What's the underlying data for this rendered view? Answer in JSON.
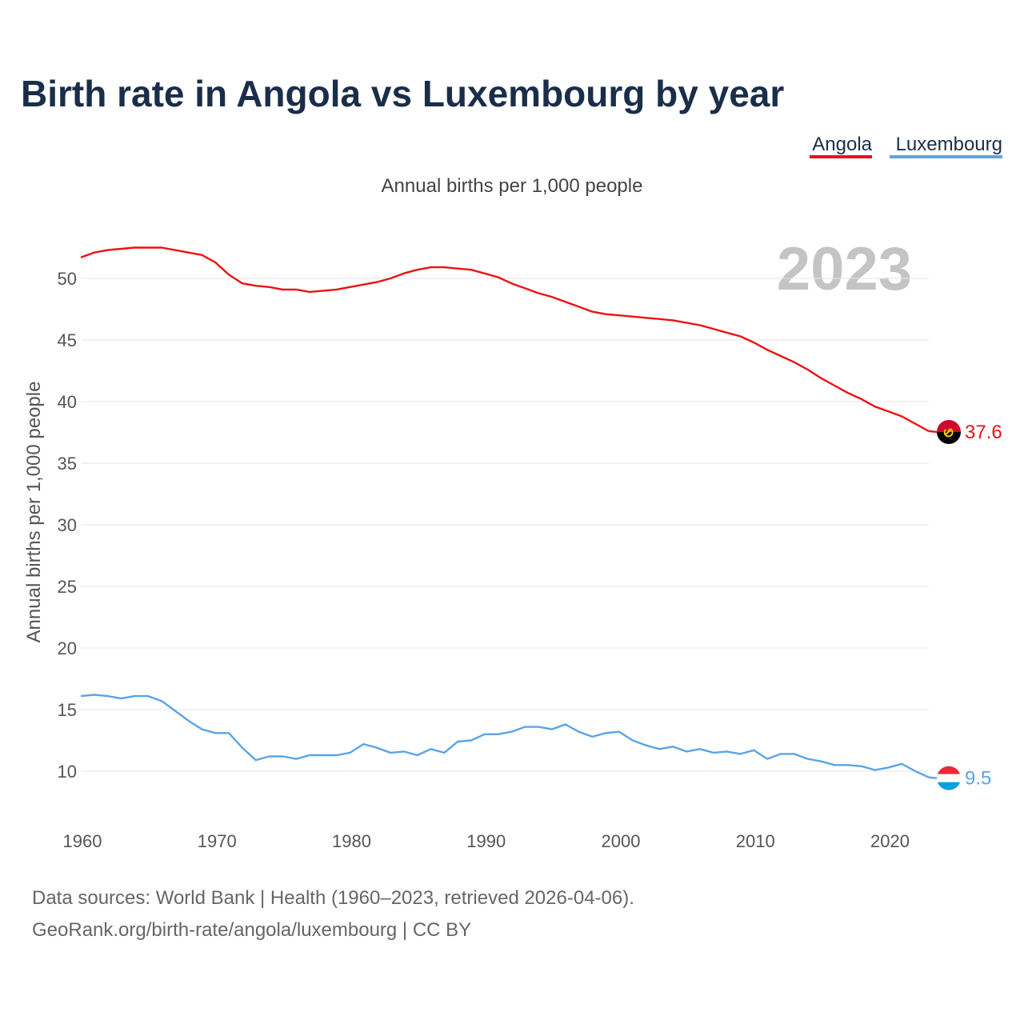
{
  "chart_data": {
    "type": "line",
    "title": "Birth rate in Angola vs Luxembourg by year",
    "subtitle": "Annual births per 1,000 people",
    "ylabel": "Annual births per 1,000 people",
    "xlabel": "",
    "xlim": [
      1960,
      2023
    ],
    "ylim": [
      6.5,
      54
    ],
    "year_label": "2023",
    "x_ticks": [
      1960,
      1970,
      1980,
      1990,
      2000,
      2010,
      2020
    ],
    "y_ticks": [
      10,
      15,
      20,
      25,
      30,
      35,
      40,
      45,
      50
    ],
    "legend": [
      "Angola",
      "Luxembourg"
    ],
    "legend_position": "top-right",
    "x": [
      1960,
      1961,
      1962,
      1963,
      1964,
      1965,
      1966,
      1967,
      1968,
      1969,
      1970,
      1971,
      1972,
      1973,
      1974,
      1975,
      1976,
      1977,
      1978,
      1979,
      1980,
      1981,
      1982,
      1983,
      1984,
      1985,
      1986,
      1987,
      1988,
      1989,
      1990,
      1991,
      1992,
      1993,
      1994,
      1995,
      1996,
      1997,
      1998,
      1999,
      2000,
      2001,
      2002,
      2003,
      2004,
      2005,
      2006,
      2007,
      2008,
      2009,
      2010,
      2011,
      2012,
      2013,
      2014,
      2015,
      2016,
      2017,
      2018,
      2019,
      2020,
      2021,
      2022,
      2023
    ],
    "series": [
      {
        "name": "Angola",
        "color": "#ee1111",
        "end_label": "37.6",
        "flag_icon": "angola-flag-icon",
        "values": [
          51.7,
          52.1,
          52.3,
          52.4,
          52.5,
          52.5,
          52.5,
          52.3,
          52.1,
          51.9,
          51.3,
          50.3,
          49.6,
          49.4,
          49.3,
          49.1,
          49.1,
          48.9,
          49.0,
          49.1,
          49.3,
          49.5,
          49.7,
          50.0,
          50.4,
          50.7,
          50.9,
          50.9,
          50.8,
          50.7,
          50.4,
          50.1,
          49.6,
          49.2,
          48.8,
          48.5,
          48.1,
          47.7,
          47.3,
          47.1,
          47.0,
          46.9,
          46.8,
          46.7,
          46.6,
          46.4,
          46.2,
          45.9,
          45.6,
          45.3,
          44.8,
          44.2,
          43.7,
          43.2,
          42.6,
          41.9,
          41.3,
          40.7,
          40.2,
          39.6,
          39.2,
          38.8,
          38.2,
          37.6
        ]
      },
      {
        "name": "Luxembourg",
        "color": "#5aa4e8",
        "end_label": "9.5",
        "flag_icon": "luxembourg-flag-icon",
        "values": [
          16.1,
          16.2,
          16.1,
          15.9,
          16.1,
          16.1,
          15.7,
          14.9,
          14.1,
          13.4,
          13.1,
          13.1,
          11.9,
          10.9,
          11.2,
          11.2,
          11.0,
          11.3,
          11.3,
          11.3,
          11.5,
          12.2,
          11.9,
          11.5,
          11.6,
          11.3,
          11.8,
          11.5,
          12.4,
          12.5,
          13.0,
          13.0,
          13.2,
          13.6,
          13.6,
          13.4,
          13.8,
          13.2,
          12.8,
          13.1,
          13.2,
          12.5,
          12.1,
          11.8,
          12.0,
          11.6,
          11.8,
          11.5,
          11.6,
          11.4,
          11.7,
          11.0,
          11.4,
          11.4,
          11.0,
          10.8,
          10.5,
          10.5,
          10.4,
          10.1,
          10.3,
          10.6,
          10.0,
          9.5
        ]
      }
    ]
  },
  "footer": {
    "line1": "Data sources: World Bank | Health (1960–2023, retrieved 2026-04-06).",
    "line2": "GeoRank.org/birth-rate/angola/luxembourg | CC BY"
  }
}
